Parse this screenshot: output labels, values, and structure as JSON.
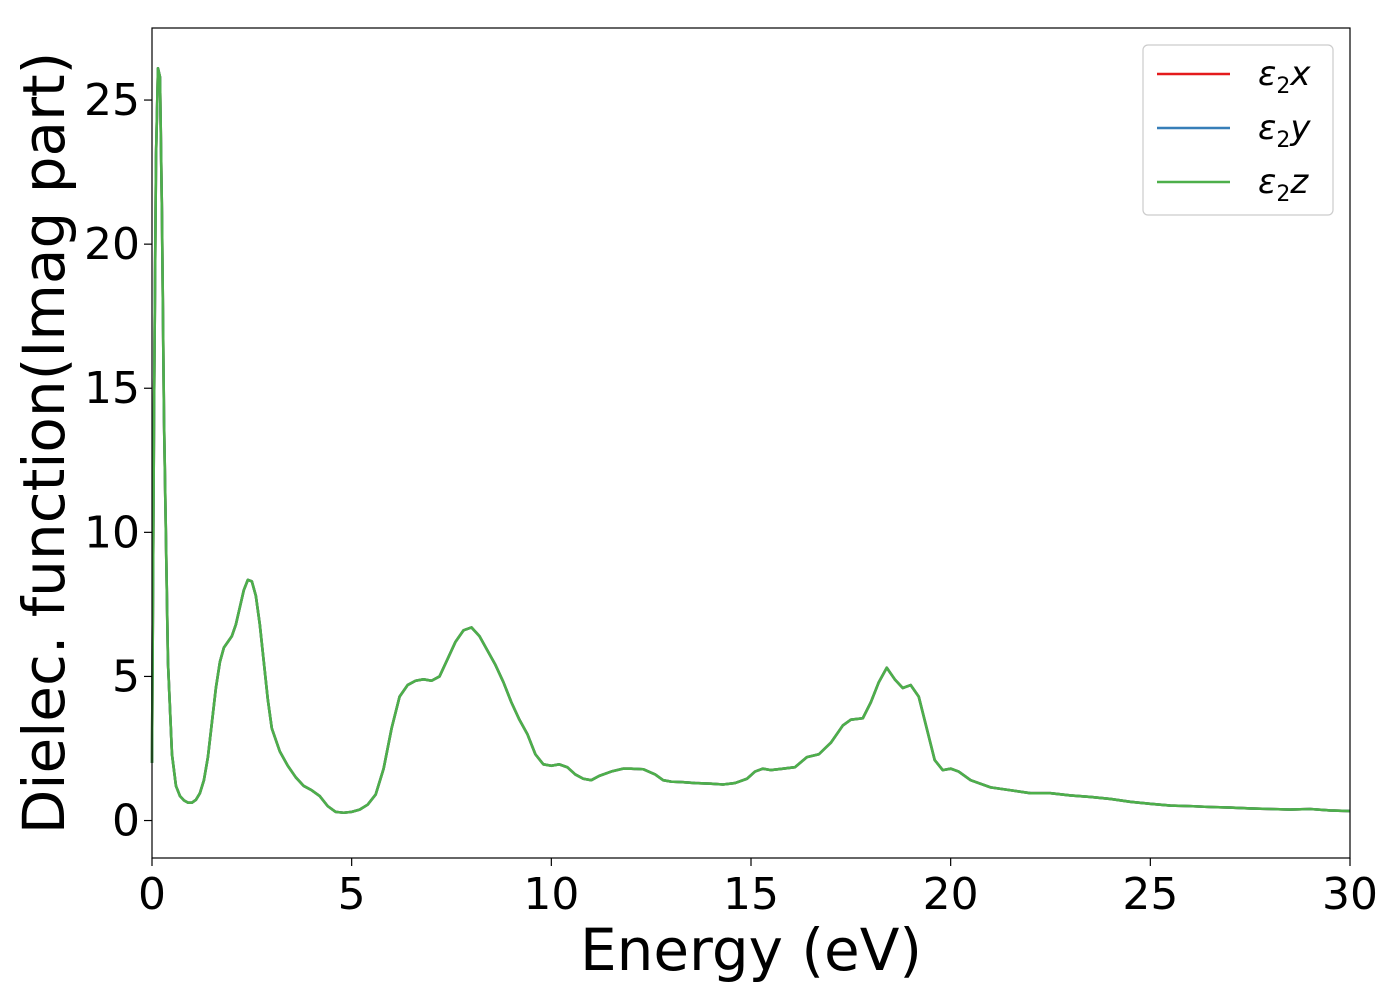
{
  "chart_data": {
    "type": "line",
    "xlabel": "Energy (eV)",
    "ylabel": "Dielec. function(Imag part)",
    "xlim": [
      0,
      30
    ],
    "ylim": [
      -1.3,
      27.5
    ],
    "xticks": [
      0,
      5,
      10,
      15,
      20,
      25,
      30
    ],
    "yticks": [
      0,
      5,
      10,
      15,
      20,
      25
    ],
    "xtick_labels": [
      "0",
      "5",
      "10",
      "15",
      "20",
      "25",
      "30"
    ],
    "ytick_labels": [
      "0",
      "5",
      "10",
      "15",
      "20",
      "25"
    ],
    "grid": false,
    "legend_position": "top-right",
    "legend": [
      {
        "eps": "ε",
        "sub": "2",
        "axis": "x",
        "color": "#e41a1c"
      },
      {
        "eps": "ε",
        "sub": "2",
        "axis": "y",
        "color": "#377eb8"
      },
      {
        "eps": "ε",
        "sub": "2",
        "axis": "z",
        "color": "#4daf4a"
      }
    ],
    "x": [
      0.0,
      0.05,
      0.1,
      0.15,
      0.2,
      0.25,
      0.3,
      0.4,
      0.5,
      0.6,
      0.7,
      0.8,
      0.9,
      1.0,
      1.1,
      1.2,
      1.3,
      1.4,
      1.5,
      1.6,
      1.7,
      1.8,
      1.9,
      2.0,
      2.1,
      2.2,
      2.3,
      2.4,
      2.5,
      2.6,
      2.7,
      2.8,
      2.9,
      3.0,
      3.2,
      3.4,
      3.6,
      3.8,
      4.0,
      4.2,
      4.4,
      4.6,
      4.8,
      5.0,
      5.2,
      5.4,
      5.6,
      5.8,
      6.0,
      6.2,
      6.4,
      6.6,
      6.8,
      7.0,
      7.2,
      7.4,
      7.6,
      7.8,
      8.0,
      8.2,
      8.4,
      8.6,
      8.8,
      9.0,
      9.2,
      9.4,
      9.6,
      9.8,
      10.0,
      10.2,
      10.4,
      10.6,
      10.8,
      11.0,
      11.2,
      11.5,
      11.8,
      12.0,
      12.3,
      12.6,
      12.8,
      13.0,
      13.3,
      13.6,
      14.0,
      14.3,
      14.6,
      14.9,
      15.1,
      15.3,
      15.5,
      15.8,
      16.1,
      16.4,
      16.7,
      17.0,
      17.3,
      17.5,
      17.8,
      18.0,
      18.2,
      18.4,
      18.6,
      18.8,
      19.0,
      19.2,
      19.4,
      19.6,
      19.8,
      20.0,
      20.2,
      20.5,
      21.0,
      21.5,
      22.0,
      22.5,
      23.0,
      23.5,
      24.0,
      24.5,
      25.0,
      25.5,
      26.0,
      26.5,
      27.0,
      27.5,
      28.0,
      28.5,
      29.0,
      29.5,
      30.0
    ],
    "series": [
      {
        "values": [
          2.0,
          14.0,
          23.0,
          26.1,
          25.8,
          21.0,
          14.0,
          5.5,
          2.3,
          1.2,
          0.85,
          0.7,
          0.62,
          0.62,
          0.72,
          0.95,
          1.4,
          2.2,
          3.4,
          4.6,
          5.5,
          6.0,
          6.2,
          6.4,
          6.8,
          7.4,
          8.0,
          8.35,
          8.3,
          7.8,
          6.8,
          5.5,
          4.2,
          3.2,
          2.4,
          1.9,
          1.5,
          1.2,
          1.05,
          0.85,
          0.5,
          0.3,
          0.27,
          0.3,
          0.38,
          0.55,
          0.9,
          1.8,
          3.2,
          4.3,
          4.7,
          4.85,
          4.9,
          4.85,
          5.0,
          5.6,
          6.2,
          6.6,
          6.7,
          6.4,
          5.9,
          5.4,
          4.8,
          4.1,
          3.5,
          3.0,
          2.3,
          1.95,
          1.9,
          1.95,
          1.85,
          1.6,
          1.45,
          1.4,
          1.55,
          1.7,
          1.8,
          1.8,
          1.78,
          1.6,
          1.4,
          1.35,
          1.33,
          1.3,
          1.28,
          1.25,
          1.3,
          1.45,
          1.7,
          1.8,
          1.75,
          1.8,
          1.85,
          2.2,
          2.3,
          2.7,
          3.3,
          3.5,
          3.55,
          4.1,
          4.8,
          5.3,
          4.9,
          4.6,
          4.7,
          4.3,
          3.2,
          2.1,
          1.75,
          1.8,
          1.7,
          1.4,
          1.15,
          1.05,
          0.95,
          0.95,
          0.87,
          0.82,
          0.75,
          0.65,
          0.58,
          0.52,
          0.5,
          0.47,
          0.45,
          0.42,
          0.4,
          0.38,
          0.4,
          0.35,
          0.33
        ],
        "color": "#e41a1c"
      },
      {
        "values": [
          2.0,
          14.0,
          23.0,
          26.1,
          25.8,
          21.0,
          14.0,
          5.5,
          2.3,
          1.2,
          0.85,
          0.7,
          0.62,
          0.62,
          0.72,
          0.95,
          1.4,
          2.2,
          3.4,
          4.6,
          5.5,
          6.0,
          6.2,
          6.4,
          6.8,
          7.4,
          8.0,
          8.35,
          8.3,
          7.8,
          6.8,
          5.5,
          4.2,
          3.2,
          2.4,
          1.9,
          1.5,
          1.2,
          1.05,
          0.85,
          0.5,
          0.3,
          0.27,
          0.3,
          0.38,
          0.55,
          0.9,
          1.8,
          3.2,
          4.3,
          4.7,
          4.85,
          4.9,
          4.85,
          5.0,
          5.6,
          6.2,
          6.6,
          6.7,
          6.4,
          5.9,
          5.4,
          4.8,
          4.1,
          3.5,
          3.0,
          2.3,
          1.95,
          1.9,
          1.95,
          1.85,
          1.6,
          1.45,
          1.4,
          1.55,
          1.7,
          1.8,
          1.8,
          1.78,
          1.6,
          1.4,
          1.35,
          1.33,
          1.3,
          1.28,
          1.25,
          1.3,
          1.45,
          1.7,
          1.8,
          1.75,
          1.8,
          1.85,
          2.2,
          2.3,
          2.7,
          3.3,
          3.5,
          3.55,
          4.1,
          4.8,
          5.3,
          4.9,
          4.6,
          4.7,
          4.3,
          3.2,
          2.1,
          1.75,
          1.8,
          1.7,
          1.4,
          1.15,
          1.05,
          0.95,
          0.95,
          0.87,
          0.82,
          0.75,
          0.65,
          0.58,
          0.52,
          0.5,
          0.47,
          0.45,
          0.42,
          0.4,
          0.38,
          0.4,
          0.35,
          0.33
        ],
        "color": "#377eb8"
      },
      {
        "values": [
          2.0,
          14.0,
          23.0,
          26.1,
          25.8,
          21.0,
          14.0,
          5.5,
          2.3,
          1.2,
          0.85,
          0.7,
          0.62,
          0.62,
          0.72,
          0.95,
          1.4,
          2.2,
          3.4,
          4.6,
          5.5,
          6.0,
          6.2,
          6.4,
          6.8,
          7.4,
          8.0,
          8.35,
          8.3,
          7.8,
          6.8,
          5.5,
          4.2,
          3.2,
          2.4,
          1.9,
          1.5,
          1.2,
          1.05,
          0.85,
          0.5,
          0.3,
          0.27,
          0.3,
          0.38,
          0.55,
          0.9,
          1.8,
          3.2,
          4.3,
          4.7,
          4.85,
          4.9,
          4.85,
          5.0,
          5.6,
          6.2,
          6.6,
          6.7,
          6.4,
          5.9,
          5.4,
          4.8,
          4.1,
          3.5,
          3.0,
          2.3,
          1.95,
          1.9,
          1.95,
          1.85,
          1.6,
          1.45,
          1.4,
          1.55,
          1.7,
          1.8,
          1.8,
          1.78,
          1.6,
          1.4,
          1.35,
          1.33,
          1.3,
          1.28,
          1.25,
          1.3,
          1.45,
          1.7,
          1.8,
          1.75,
          1.8,
          1.85,
          2.2,
          2.3,
          2.7,
          3.3,
          3.5,
          3.55,
          4.1,
          4.8,
          5.3,
          4.9,
          4.6,
          4.7,
          4.3,
          3.2,
          2.1,
          1.75,
          1.8,
          1.7,
          1.4,
          1.15,
          1.05,
          0.95,
          0.95,
          0.87,
          0.82,
          0.75,
          0.65,
          0.58,
          0.52,
          0.5,
          0.47,
          0.45,
          0.42,
          0.4,
          0.38,
          0.4,
          0.35,
          0.33
        ],
        "color": "#4daf4a"
      }
    ]
  }
}
